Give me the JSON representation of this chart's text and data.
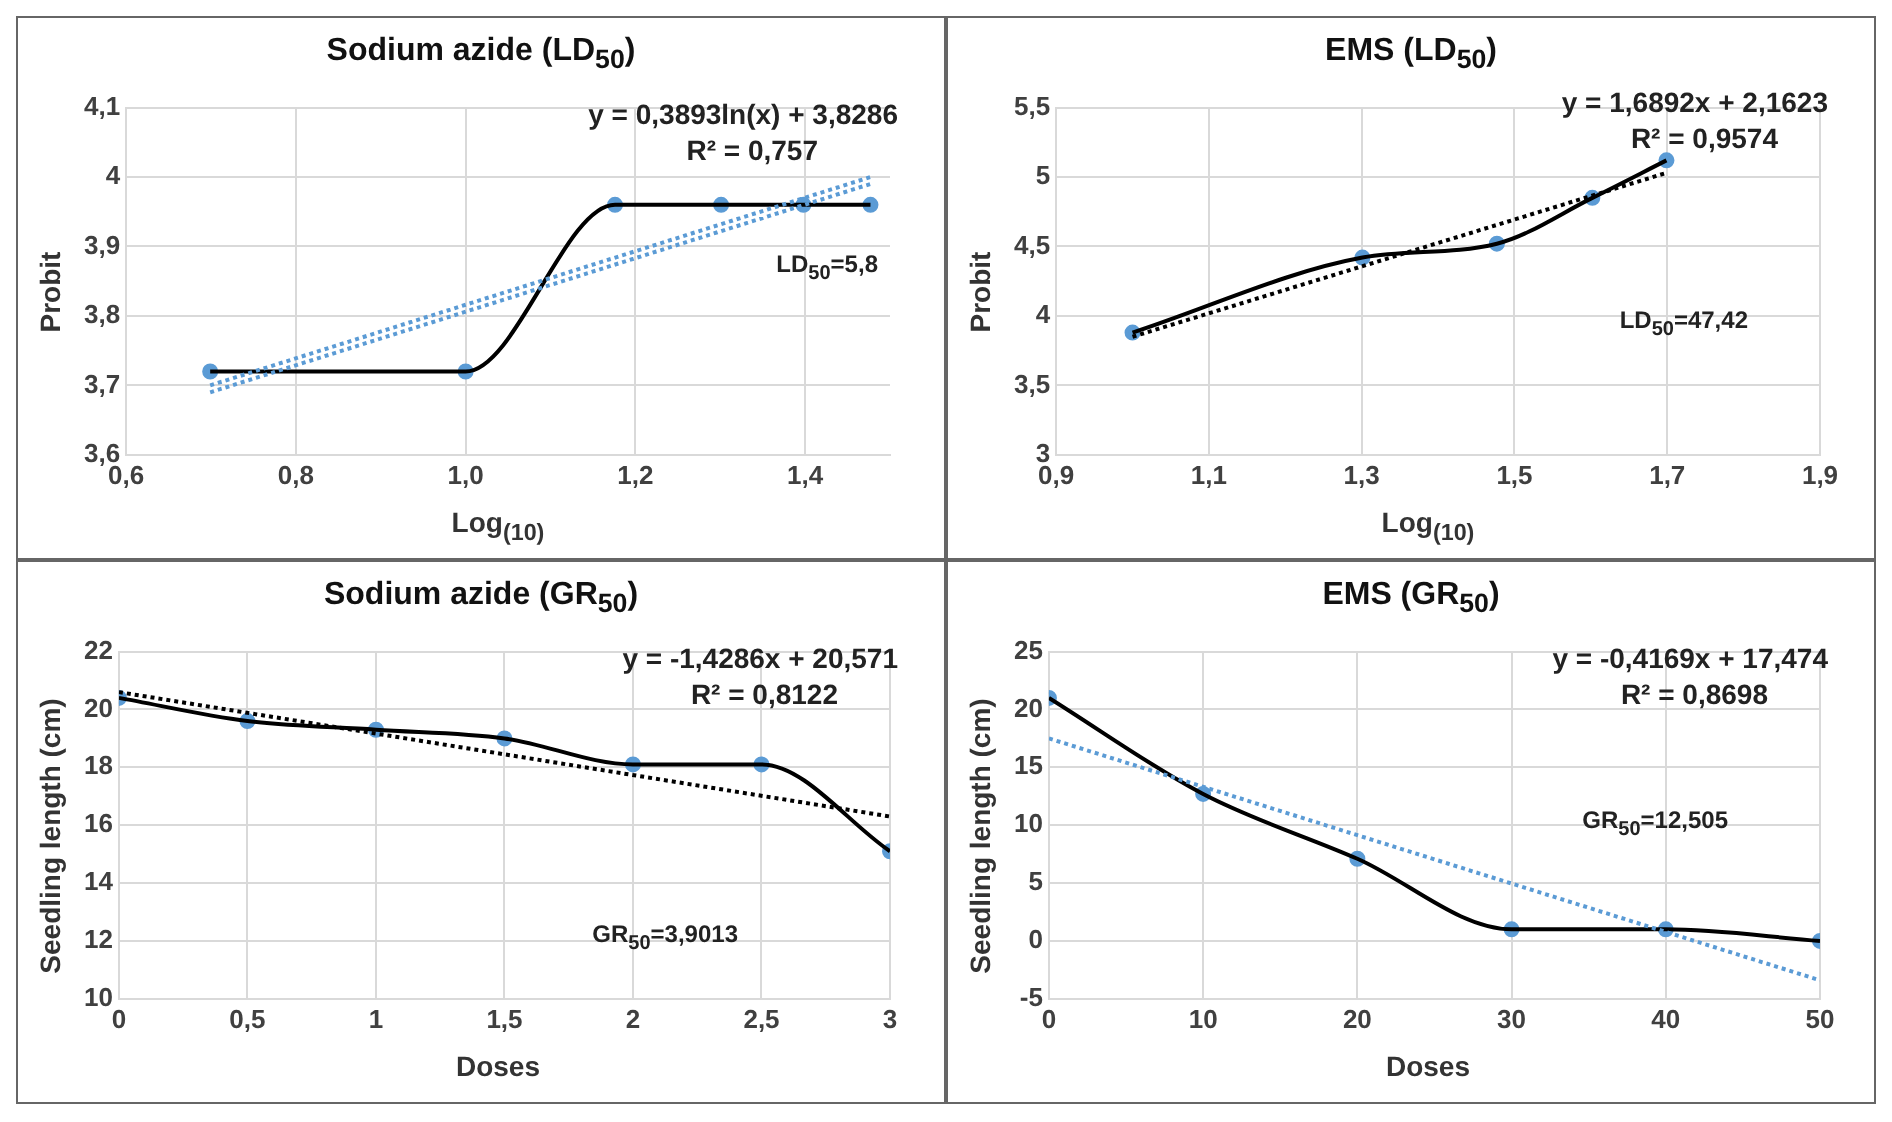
{
  "chart_data": [
    {
      "type": "line",
      "title": "Sodium azide (LD$_{50}$)",
      "xlabel": "Log$_{(10)}$",
      "ylabel": "Probit",
      "grid": true,
      "legend": false,
      "xlim": [
        0.6,
        1.5
      ],
      "xticks": [
        {
          "value": 0.6,
          "label": "0,6"
        },
        {
          "value": 0.8,
          "label": "0,8"
        },
        {
          "value": 1.0,
          "label": "1,0"
        },
        {
          "value": 1.2,
          "label": "1,2"
        },
        {
          "value": 1.4,
          "label": "1,4"
        }
      ],
      "ylim": [
        3.6,
        4.1
      ],
      "yticks": [
        {
          "value": 3.6,
          "label": "3,6"
        },
        {
          "value": 3.7,
          "label": "3,7"
        },
        {
          "value": 3.8,
          "label": "3,8"
        },
        {
          "value": 3.9,
          "label": "3,9"
        },
        4,
        {
          "value": 4.1,
          "label": "4,1"
        }
      ],
      "series": [
        {
          "color": "#5b9bd5",
          "line_style": "dotted",
          "marker": "none",
          "x": [
            0.699,
            1.477
          ],
          "values": [
            3.69,
            3.99
          ]
        },
        {
          "color": "#5b9bd5",
          "line_style": "dotted",
          "marker": "none",
          "x": [
            0.699,
            1.477
          ],
          "values": [
            3.7,
            4.0
          ]
        },
        {
          "color": "#000000",
          "line_style": "solid",
          "marker": "none",
          "x": [
            0.699,
            1.0,
            1.176,
            1.301,
            1.398,
            1.477
          ],
          "values": [
            3.72,
            3.72,
            3.96,
            3.96,
            3.96,
            3.96
          ]
        },
        {
          "type": "scatter",
          "color": "#5b9bd5",
          "marker": "circle",
          "x": [
            0.699,
            1.0,
            1.176,
            1.301,
            1.398,
            1.477
          ],
          "values": [
            3.72,
            3.72,
            3.96,
            3.96,
            3.96,
            3.96
          ]
        }
      ],
      "annotations": [
        "y = 0,3893ln(x) + 3,8286",
        "R² = 0,757",
        "LD$_{50}$=5,8"
      ]
    },
    {
      "type": "line",
      "title": "EMS  (LD$_{50}$)",
      "xlabel": "Log$_{(10)}$",
      "ylabel": "Probit",
      "grid": true,
      "legend": false,
      "xlim": [
        0.9,
        1.9
      ],
      "xticks": [
        {
          "value": 0.9,
          "label": "0,9"
        },
        {
          "value": 1.1,
          "label": "1,1"
        },
        {
          "value": 1.3,
          "label": "1,3"
        },
        {
          "value": 1.5,
          "label": "1,5"
        },
        {
          "value": 1.7,
          "label": "1,7"
        },
        {
          "value": 1.9,
          "label": "1,9"
        }
      ],
      "ylim": [
        3,
        5.5
      ],
      "yticks": [
        3,
        {
          "value": 3.5,
          "label": "3,5"
        },
        4,
        {
          "value": 4.5,
          "label": "4,5"
        },
        5,
        {
          "value": 5.5,
          "label": "5,5"
        }
      ],
      "series": [
        {
          "color": "#000000",
          "line_style": "dotted",
          "marker": "none",
          "x": [
            1.0,
            1.699
          ],
          "values": [
            3.85,
            5.03
          ]
        },
        {
          "color": "#000000",
          "line_style": "solid",
          "marker": "none",
          "x": [
            1.0,
            1.301,
            1.477,
            1.602,
            1.699
          ],
          "values": [
            3.88,
            4.42,
            4.52,
            4.85,
            5.12
          ]
        },
        {
          "type": "scatter",
          "color": "#5b9bd5",
          "marker": "circle",
          "x": [
            1.0,
            1.301,
            1.477,
            1.602,
            1.699
          ],
          "values": [
            3.88,
            4.42,
            4.52,
            4.85,
            5.12
          ]
        }
      ],
      "annotations": [
        "y = 1,6892x + 2,1623",
        "R² = 0,9574",
        "LD$_{50}$=47,42"
      ]
    },
    {
      "type": "line",
      "title": "Sodium azide (GR$_{50}$)",
      "xlabel": "Doses",
      "ylabel": "Seedling length (cm)",
      "grid": true,
      "legend": false,
      "xlim": [
        0,
        3
      ],
      "xticks": [
        0,
        {
          "value": 0.5,
          "label": "0,5"
        },
        1,
        {
          "value": 1.5,
          "label": "1,5"
        },
        2,
        {
          "value": 2.5,
          "label": "2,5"
        },
        3
      ],
      "ylim": [
        10,
        22
      ],
      "yticks": [
        10,
        12,
        14,
        16,
        18,
        20,
        22
      ],
      "series": [
        {
          "color": "#000000",
          "line_style": "dotted",
          "marker": "none",
          "x": [
            0,
            3
          ],
          "values": [
            20.6,
            16.3
          ]
        },
        {
          "color": "#000000",
          "line_style": "solid",
          "marker": "none",
          "x": [
            0,
            0.5,
            1,
            1.5,
            2,
            2.5,
            3
          ],
          "values": [
            20.4,
            19.6,
            19.3,
            19.0,
            18.1,
            18.1,
            15.1
          ]
        },
        {
          "type": "scatter",
          "color": "#5b9bd5",
          "marker": "circle",
          "x": [
            0,
            0.5,
            1,
            1.5,
            2,
            2.5,
            3
          ],
          "values": [
            20.4,
            19.6,
            19.3,
            19.0,
            18.1,
            18.1,
            15.1
          ]
        }
      ],
      "annotations": [
        "y = -1,4286x + 20,571",
        "R² = 0,8122",
        "GR$_{50}$=3,9013"
      ]
    },
    {
      "type": "line",
      "title": "EMS (GR$_{50}$)",
      "xlabel": "Doses",
      "ylabel": "Seedling length (cm)",
      "grid": true,
      "legend": false,
      "xlim": [
        0,
        50
      ],
      "xticks": [
        0,
        10,
        20,
        30,
        40,
        50
      ],
      "ylim": [
        -5,
        25
      ],
      "yticks": [
        -5,
        0,
        5,
        10,
        15,
        20,
        25
      ],
      "series": [
        {
          "color": "#5b9bd5",
          "line_style": "dotted",
          "marker": "none",
          "x": [
            0,
            50
          ],
          "values": [
            17.5,
            -3.4
          ]
        },
        {
          "color": "#000000",
          "line_style": "solid",
          "marker": "none",
          "x": [
            0,
            10,
            20,
            30,
            40,
            50
          ],
          "values": [
            21,
            12.7,
            7.1,
            1,
            1,
            0
          ]
        },
        {
          "type": "scatter",
          "color": "#5b9bd5",
          "marker": "circle",
          "x": [
            0,
            10,
            20,
            30,
            40,
            50
          ],
          "values": [
            21,
            12.7,
            7.1,
            1,
            1,
            0
          ]
        }
      ],
      "annotations": [
        "y = -0,4169x + 17,474",
        "R² = 0,8698",
        "GR$_{50}$=12,505"
      ]
    }
  ]
}
